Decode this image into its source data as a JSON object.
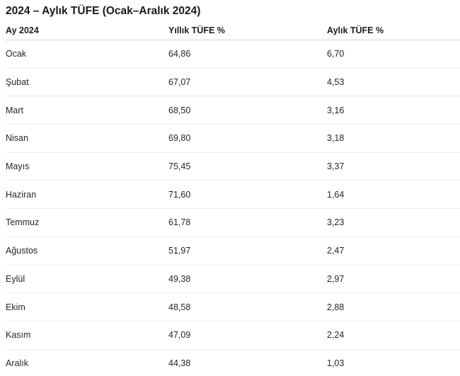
{
  "page": {
    "title": "2024 – Aylık TÜFE (Ocak–Aralık 2024)"
  },
  "table": {
    "columns": [
      "Ay 2024",
      "Yıllık TÜFE %",
      "Aylık TÜFE %"
    ],
    "rows": [
      {
        "month": "Ocak",
        "annual": "64,86",
        "monthly": "6,70"
      },
      {
        "month": "Şubat",
        "annual": "67,07",
        "monthly": "4,53"
      },
      {
        "month": "Mart",
        "annual": "68,50",
        "monthly": "3,16"
      },
      {
        "month": "Nisan",
        "annual": "69,80",
        "monthly": "3,18"
      },
      {
        "month": "Mayıs",
        "annual": "75,45",
        "monthly": "3,37"
      },
      {
        "month": "Haziran",
        "annual": "71,60",
        "monthly": "1,64"
      },
      {
        "month": "Temmuz",
        "annual": "61,78",
        "monthly": "3,23"
      },
      {
        "month": "Ağustos",
        "annual": "51,97",
        "monthly": "2,47"
      },
      {
        "month": "Eylül",
        "annual": "49,38",
        "monthly": "2,97"
      },
      {
        "month": "Ekim",
        "annual": "48,58",
        "monthly": "2,88"
      },
      {
        "month": "Kasım",
        "annual": "47,09",
        "monthly": "2,24"
      },
      {
        "month": "Aralık",
        "annual": "44,38",
        "monthly": "1,03"
      }
    ]
  },
  "chart_data": {
    "type": "table",
    "title": "2024 – Aylık TÜFE (Ocak–Aralık 2024)",
    "categories": [
      "Ocak",
      "Şubat",
      "Mart",
      "Nisan",
      "Mayıs",
      "Haziran",
      "Temmuz",
      "Ağustos",
      "Eylül",
      "Ekim",
      "Kasım",
      "Aralık"
    ],
    "series": [
      {
        "name": "Yıllık TÜFE %",
        "values": [
          64.86,
          67.07,
          68.5,
          69.8,
          75.45,
          71.6,
          61.78,
          51.97,
          49.38,
          48.58,
          47.09,
          44.38
        ]
      },
      {
        "name": "Aylık TÜFE %",
        "values": [
          6.7,
          4.53,
          3.16,
          3.18,
          3.37,
          1.64,
          3.23,
          2.47,
          2.97,
          2.88,
          2.24,
          1.03
        ]
      }
    ],
    "legend_position": "none",
    "grid": "horizontal-rules-only"
  },
  "colors": {
    "background": "#ffffff",
    "title_text": "#1a1a1a",
    "header_text": "#1d1d1d",
    "cell_text": "#262626",
    "header_border": "#d2d2d2",
    "row_border": "#ececec"
  }
}
